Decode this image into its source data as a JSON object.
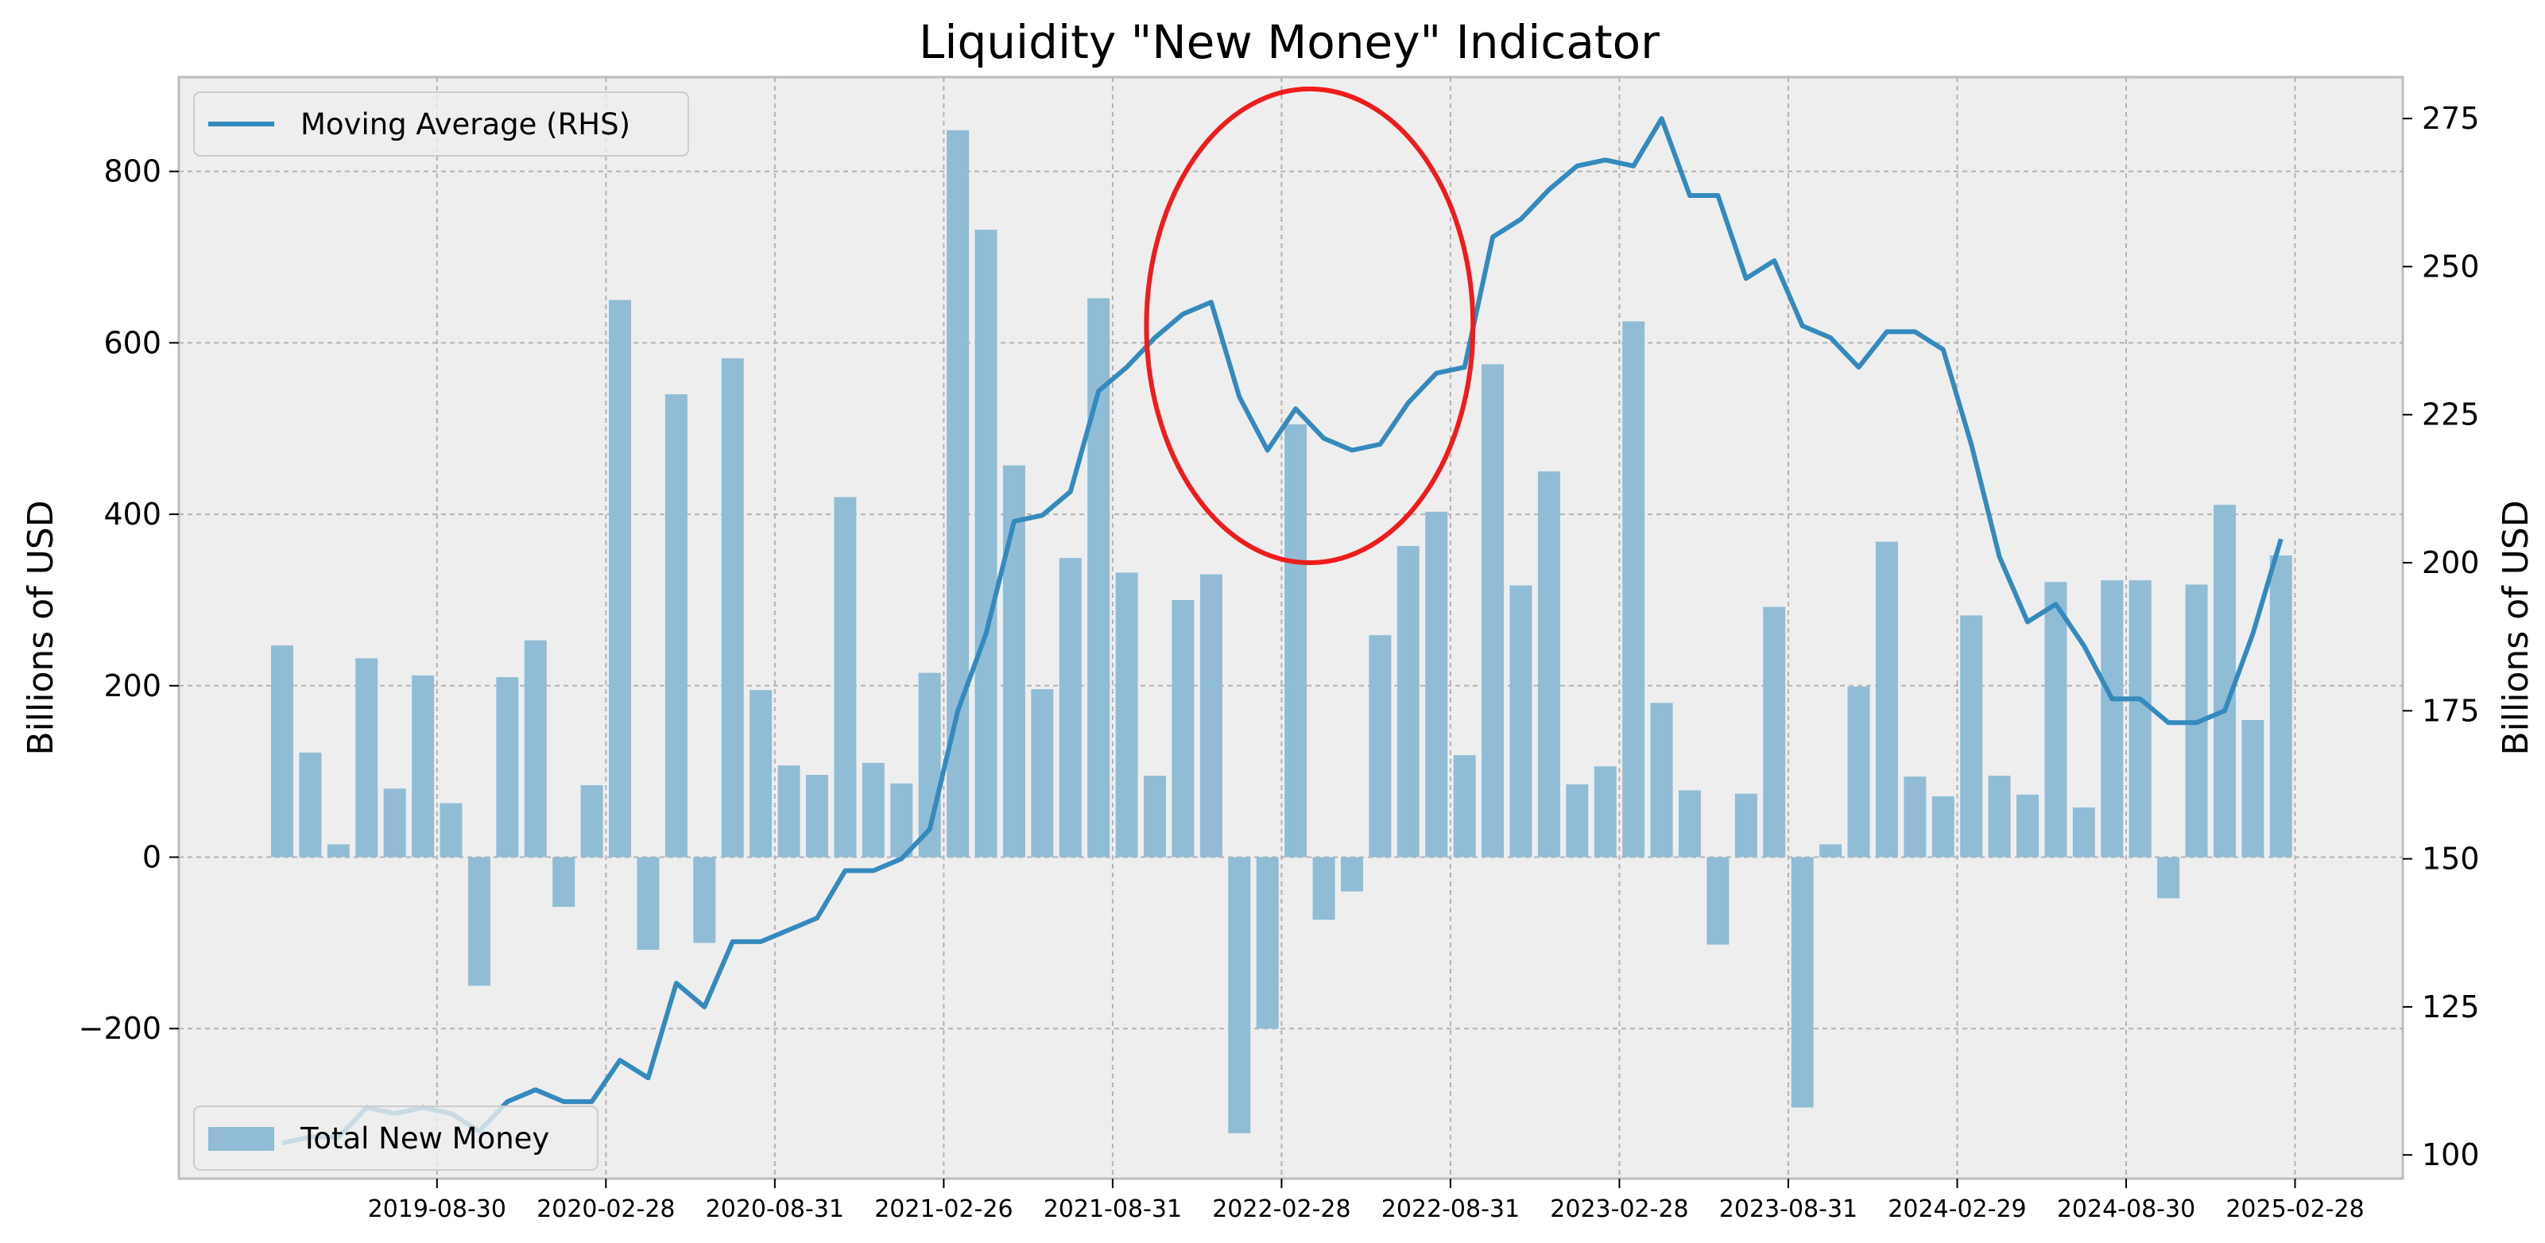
{
  "chart_data": {
    "type": "bar",
    "title": "Liquidity \"New Money\" Indicator",
    "ylabel_left": "Billions of USD",
    "ylabel_right": "Billions of USD",
    "ylim_left": [
      -375,
      910
    ],
    "ylim_right": [
      96,
      282
    ],
    "yticks_left": [
      -200,
      0,
      200,
      400,
      600,
      800
    ],
    "yticks_right": [
      100,
      125,
      150,
      175,
      200,
      225,
      250,
      275
    ],
    "grid": true,
    "x_tick_labels": [
      "2019-08-30",
      "2020-02-28",
      "2020-08-31",
      "2021-02-26",
      "2021-08-31",
      "2022-02-28",
      "2022-08-31",
      "2023-02-28",
      "2023-08-31",
      "2024-02-29",
      "2024-08-30",
      "2025-02-28"
    ],
    "x_tick_months_index": [
      5.5,
      11.5,
      17.5,
      23.5,
      29.5,
      35.5,
      41.5,
      47.5,
      53.5,
      59.5,
      65.5,
      71.5
    ],
    "series": [
      {
        "name": "Total New Money",
        "axis": "left",
        "type": "bar",
        "color": "#91bcd6",
        "values": [
          247,
          122,
          15,
          232,
          80,
          212,
          63,
          -150,
          210,
          253,
          -58,
          84,
          650,
          -108,
          540,
          -100,
          582,
          195,
          107,
          96,
          420,
          110,
          86,
          215,
          848,
          732,
          457,
          196,
          349,
          652,
          332,
          95,
          300,
          330,
          -322,
          -200,
          505,
          -73,
          -40,
          259,
          363,
          403,
          119,
          575,
          317,
          450,
          85,
          106,
          625,
          180,
          78,
          -102,
          74,
          292,
          -292,
          15,
          199,
          368,
          94,
          71,
          282,
          95,
          73,
          321,
          58,
          323,
          323,
          -48,
          318,
          411,
          160,
          352
        ]
      },
      {
        "name": "Moving Average (RHS)",
        "axis": "right",
        "type": "line",
        "color": "#348abd",
        "values": [
          102,
          103,
          103,
          108,
          107,
          108,
          107,
          104,
          109,
          111,
          109,
          109,
          116,
          113,
          129,
          125,
          136,
          136,
          138,
          140,
          148,
          148,
          150,
          155,
          175,
          188,
          207,
          208,
          212,
          229,
          233,
          238,
          242,
          244,
          228,
          219,
          226,
          221,
          219,
          220,
          227,
          232,
          233,
          255,
          258,
          263,
          267,
          268,
          267,
          275,
          262,
          262,
          248,
          251,
          240,
          238,
          233,
          239,
          239,
          236,
          220,
          201,
          190,
          193,
          186,
          177,
          177,
          173,
          173,
          175,
          188,
          204
        ]
      }
    ],
    "annotation": {
      "type": "ellipse",
      "color": "#ee1c1c",
      "center_x_index": 36.5,
      "center_y_right": 240,
      "rx_months": 5.8,
      "ry_right": 40
    },
    "legend": [
      {
        "label": "Moving Average (RHS)",
        "placement": "upper-left"
      },
      {
        "label": "Total New Money",
        "placement": "lower-left"
      }
    ]
  }
}
